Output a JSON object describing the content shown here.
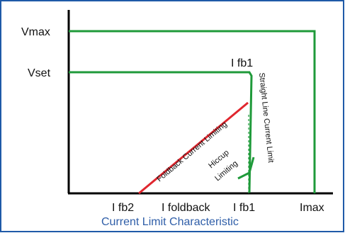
{
  "colors": {
    "frame": "#1f5aa8",
    "curve": "#1f9a3a",
    "foldback": "#e0262e",
    "axis": "#000000",
    "caption": "#2f5ea8",
    "dashed": "#1f9a3a"
  },
  "labels": {
    "y_vmax": "Vmax",
    "y_vset": "Vset",
    "ifb1_top": "I fb1",
    "x_ifb2": "I fb2",
    "x_ifoldback": "I foldback",
    "x_ifb1": "I fb1",
    "x_imax": "Imax",
    "foldback": "Foldback Current Limiting",
    "straight_line": "Straight Line Current Limit",
    "hiccup_line1": "Hiccup",
    "hiccup_line2": "Limiting",
    "caption": "Current Limit Characteristic"
  }
}
